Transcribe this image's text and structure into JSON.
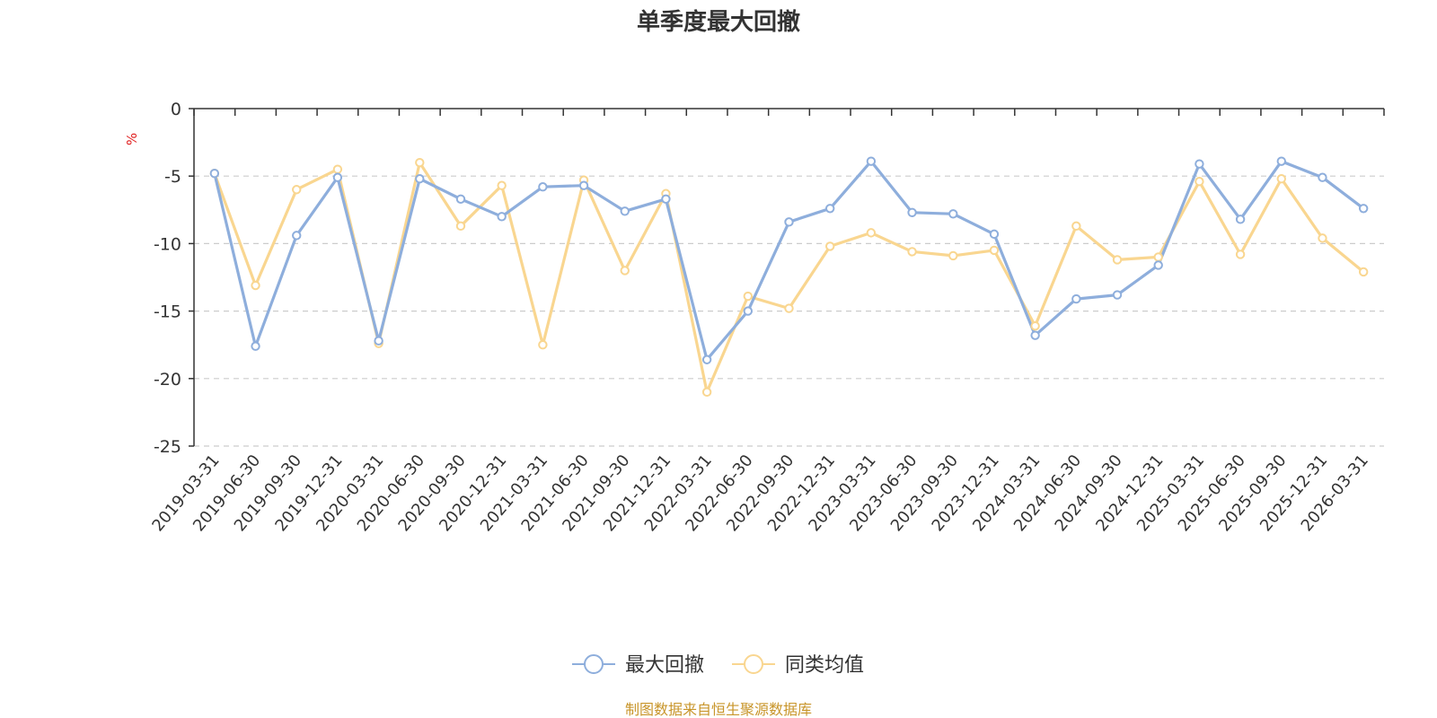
{
  "chart_data": {
    "type": "line",
    "title": "单季度最大回撤",
    "ylabel": "%",
    "ylim": [
      -25,
      0
    ],
    "yticks": [
      0,
      -5,
      -10,
      -15,
      -20,
      -25
    ],
    "categories": [
      "2019-03-31",
      "2019-06-30",
      "2019-09-30",
      "2019-12-31",
      "2020-03-31",
      "2020-06-30",
      "2020-09-30",
      "2020-12-31",
      "2021-03-31",
      "2021-06-30",
      "2021-09-30",
      "2021-12-31",
      "2022-03-31",
      "2022-06-30",
      "2022-09-30",
      "2022-12-31",
      "2023-03-31",
      "2023-06-30",
      "2023-09-30",
      "2023-12-31",
      "2024-03-31",
      "2024-06-30",
      "2024-09-30",
      "2024-12-31",
      "2025-03-31",
      "2025-06-30",
      "2025-09-30",
      "2025-12-31",
      "2026-03-31"
    ],
    "series": [
      {
        "name": "最大回撤",
        "color": "#8eaedc",
        "values": [
          -4.8,
          -17.6,
          -9.4,
          -5.1,
          -17.2,
          -5.2,
          -6.7,
          -8.0,
          -5.8,
          -5.7,
          -7.6,
          -6.7,
          -18.6,
          -15.0,
          -8.4,
          -7.4,
          -3.9,
          -7.7,
          -7.8,
          -9.3,
          -16.8,
          -14.1,
          -13.8,
          -11.6,
          -4.1,
          -8.2,
          -3.9,
          -5.1,
          -7.4
        ]
      },
      {
        "name": "同类均值",
        "color": "#f9d690",
        "values": [
          -4.8,
          -13.1,
          -6.0,
          -4.5,
          -17.4,
          -4.0,
          -8.7,
          -5.7,
          -17.5,
          -5.3,
          -12.0,
          -6.3,
          -21.0,
          -13.9,
          -14.8,
          -10.2,
          -9.2,
          -10.6,
          -10.9,
          -10.5,
          -16.1,
          -8.7,
          -11.2,
          -11.0,
          -5.4,
          -10.8,
          -5.2,
          -9.6,
          -12.1
        ]
      }
    ],
    "grid": true,
    "legend_position": "bottom"
  },
  "footer": {
    "source": "制图数据来自恒生聚源数据库"
  }
}
